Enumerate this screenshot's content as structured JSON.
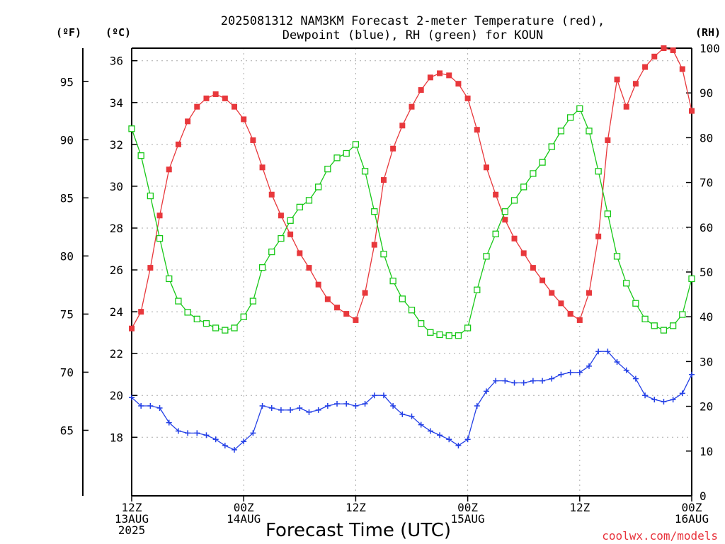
{
  "title_line1": "2025081312 NAM3KM Forecast 2-meter Temperature (red),",
  "title_line2": "Dewpoint (blue), RH (green) for KOUN",
  "unit_f": "(ºF)",
  "unit_c": "(ºC)",
  "unit_rh": "(RH)",
  "xlabel": "Forecast Time (UTC)",
  "credit": "coolwx.com/models",
  "colors": {
    "temperature": "#e8383c",
    "dewpoint": "#2440e6",
    "rh": "#18c818",
    "grid": "#aaaaaa"
  },
  "chart_data": {
    "type": "line",
    "x_hours_since_12Z_13AUG": [
      0,
      1,
      2,
      3,
      4,
      5,
      6,
      7,
      8,
      9,
      10,
      11,
      12,
      13,
      14,
      15,
      16,
      17,
      18,
      19,
      20,
      21,
      22,
      23,
      24,
      25,
      26,
      27,
      28,
      29,
      30,
      31,
      32,
      33,
      34,
      35,
      36,
      37,
      38,
      39,
      40,
      41,
      42,
      43,
      44,
      45,
      46,
      47,
      48,
      49,
      50,
      51,
      52,
      53,
      54,
      55,
      56,
      57,
      58,
      59,
      60
    ],
    "x_ticks": [
      {
        "hour": 0,
        "lines": [
          "12Z",
          "13AUG",
          "2025"
        ]
      },
      {
        "hour": 12,
        "lines": [
          "00Z",
          "14AUG"
        ]
      },
      {
        "hour": 24,
        "lines": [
          "12Z"
        ]
      },
      {
        "hour": 36,
        "lines": [
          "00Z",
          "15AUG"
        ]
      },
      {
        "hour": 48,
        "lines": [
          "12Z"
        ]
      },
      {
        "hour": 60,
        "lines": [
          "00Z",
          "16AUG"
        ]
      }
    ],
    "y_celsius": {
      "range": [
        15.2,
        36.6
      ],
      "ticks": [
        "18",
        "20",
        "22",
        "24",
        "26",
        "28",
        "30",
        "32",
        "34",
        "36"
      ]
    },
    "y_fahrenheit": {
      "ticks": [
        "65",
        "70",
        "75",
        "80",
        "85",
        "90",
        "95"
      ]
    },
    "y_rh": {
      "range": [
        0,
        100
      ],
      "ticks": [
        "0",
        "10",
        "20",
        "30",
        "40",
        "50",
        "60",
        "70",
        "80",
        "90",
        "100"
      ]
    },
    "grid": true,
    "series": [
      {
        "name": "Temperature",
        "axis": "celsius",
        "marker": "square-filled",
        "values": [
          23.2,
          24.0,
          26.1,
          28.6,
          30.8,
          32.0,
          33.1,
          33.8,
          34.2,
          34.4,
          34.2,
          33.8,
          33.2,
          32.2,
          30.9,
          29.6,
          28.6,
          27.7,
          26.8,
          26.1,
          25.3,
          24.6,
          24.2,
          23.9,
          23.6,
          24.9,
          27.2,
          30.3,
          31.8,
          32.9,
          33.8,
          34.6,
          35.2,
          35.4,
          35.3,
          34.9,
          34.2,
          32.7,
          30.9,
          29.6,
          28.4,
          27.5,
          26.8,
          26.1,
          25.5,
          24.9,
          24.4,
          23.9,
          23.6,
          24.9,
          27.6,
          32.2,
          35.1,
          33.8,
          34.9,
          35.7,
          36.2,
          36.6,
          36.5,
          35.6,
          33.6
        ]
      },
      {
        "name": "Dewpoint",
        "axis": "celsius",
        "marker": "plus",
        "values": [
          19.9,
          19.5,
          19.5,
          19.4,
          18.7,
          18.3,
          18.2,
          18.2,
          18.1,
          17.9,
          17.6,
          17.4,
          17.8,
          18.2,
          19.5,
          19.4,
          19.3,
          19.3,
          19.4,
          19.2,
          19.3,
          19.5,
          19.6,
          19.6,
          19.5,
          19.6,
          20.0,
          20.0,
          19.5,
          19.1,
          19.0,
          18.6,
          18.3,
          18.1,
          17.9,
          17.6,
          17.9,
          19.5,
          20.2,
          20.7,
          20.7,
          20.6,
          20.6,
          20.7,
          20.7,
          20.8,
          21.0,
          21.1,
          21.1,
          21.4,
          22.1,
          22.1,
          21.6,
          21.2,
          20.8,
          20.0,
          19.8,
          19.7,
          19.8,
          20.1,
          21.0
        ]
      },
      {
        "name": "RH",
        "axis": "rh",
        "marker": "square-open",
        "values": [
          82.0,
          76.0,
          67.0,
          57.5,
          48.5,
          43.5,
          41.0,
          39.5,
          38.5,
          37.5,
          37.0,
          37.5,
          40.0,
          43.5,
          51.0,
          54.5,
          57.5,
          61.5,
          64.5,
          66.0,
          69.0,
          73.0,
          75.5,
          76.5,
          78.5,
          72.5,
          63.5,
          54.0,
          48.0,
          44.0,
          41.5,
          38.5,
          36.5,
          36.0,
          35.8,
          35.8,
          37.5,
          46.0,
          53.5,
          58.5,
          63.5,
          66.0,
          69.0,
          72.0,
          74.5,
          78.0,
          81.5,
          84.5,
          86.5,
          81.5,
          72.5,
          63.0,
          53.5,
          47.5,
          43.0,
          39.5,
          38.0,
          37.0,
          38.0,
          40.5,
          48.5
        ]
      }
    ]
  }
}
